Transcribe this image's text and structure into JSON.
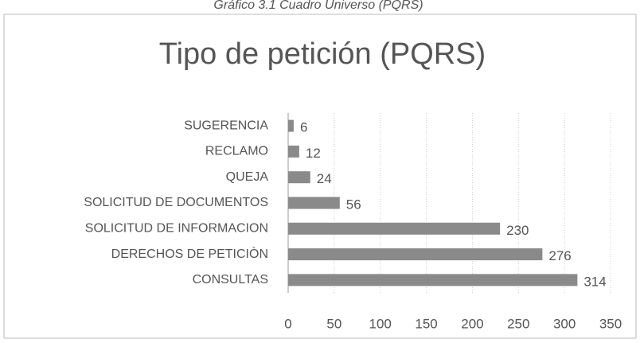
{
  "caption": "Gráfico 3.1 Cuadro Universo (PQRS)",
  "chart_data": {
    "type": "bar",
    "orientation": "horizontal",
    "title": "Tipo de petición (PQRS)",
    "categories": [
      "SUGERENCIA",
      "RECLAMO",
      "QUEJA",
      "SOLICITUD DE DOCUMENTOS",
      "SOLICITUD DE INFORMACION",
      "DERECHOS DE PETICIÒN",
      "CONSULTAS"
    ],
    "values": [
      6,
      12,
      24,
      56,
      230,
      276,
      314
    ],
    "color": "#8a8a8a",
    "xlim": [
      0,
      350
    ],
    "xticks": [
      0,
      50,
      100,
      150,
      200,
      250,
      300,
      350
    ],
    "grid": true
  }
}
